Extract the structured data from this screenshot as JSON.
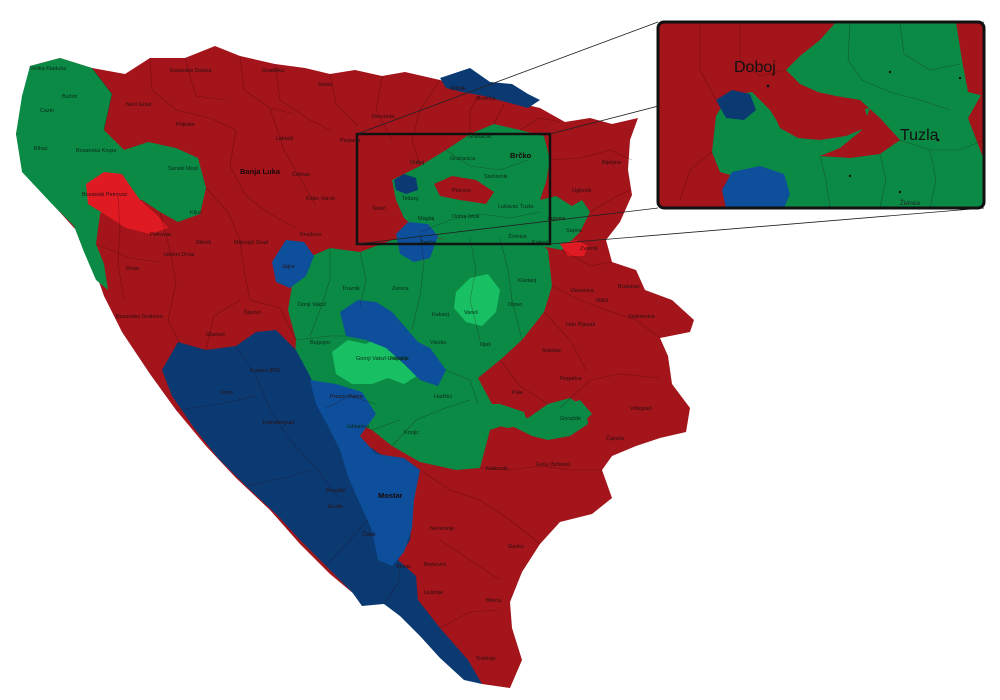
{
  "colors": {
    "red_dark": "#a3141b",
    "red_bright": "#e01a23",
    "green": "#0b8a46",
    "green_light": "#19c063",
    "blue_dark": "#0b3a73",
    "blue_mid": "#0d4f9a",
    "frame": "#111111"
  },
  "labels": {
    "banja_luka": "Banja Luka",
    "brcko": "Brčko",
    "mostar": "Mostar",
    "doboj": "Doboj",
    "tuzla": "Tuzla",
    "bosanski_petrovac": "Bosanski Petrovac",
    "gornji_vakuf": "Gornji Vakuf-Uskoplje",
    "vares": "Vareš",
    "fojnica": "Fojnica",
    "kupres": "Kupres (RS)",
    "livno": "Livno",
    "tomislavgrad": "Tomislavgrad",
    "prozor": "Prozor-Rama",
    "jablanica": "Jablanica",
    "konjic": "Konjic",
    "citluk": "Čitluk",
    "stolac": "Stolac",
    "ljubinje": "Ljubinje",
    "trebinje": "Trebinje",
    "bileca": "Bileća",
    "gacko": "Gacko",
    "nevesinje": "Nevesinje",
    "kalinovik": "Kalinovik",
    "foca": "Foča (Srbinje)",
    "gorazde": "Goražde",
    "visegrad": "Višegrad",
    "rogatica": "Rogatica",
    "sokolac": "Sokolac",
    "pale": "Pale",
    "han_pijesak": "Han Pijesak",
    "vlasenica": "Vlasenica",
    "bratunac": "Bratunac",
    "srebrenica": "Srebrenica",
    "milici": "Milići",
    "zvornik": "Zvornik",
    "bijeljina": "Bijeljina",
    "ugljevik": "Ugljevik",
    "lopare": "Lopare",
    "kladanj": "Kladanj",
    "olovo": "Olovo",
    "kakanj": "Kakanj",
    "zenica": "Zenica",
    "travnik": "Travnik",
    "zepce": "Žepče",
    "maglaj": "Maglaj",
    "tesanj": "Tešanj",
    "teslic": "Teslić",
    "gracanica": "Gračanica",
    "srebrenik": "Srebrenik",
    "lukavac": "Lukavac",
    "zivinice": "Živinice",
    "gradacac": "Gradačac",
    "odzak": "Odžak",
    "modrica": "Modriča",
    "derventa": "Derventa",
    "prnjavor": "Prnjavor",
    "laktasi": "Laktaši",
    "gradiska": "Gradiška",
    "srbac": "Srbac",
    "kozarska_dubica": "Kozarska Dubica",
    "novi_grad": "Novi Grad",
    "prijedor": "Prijedor",
    "velika_kladusa": "Velika Kladuša",
    "cazin": "Cazin",
    "bihac": "Bihać",
    "buzim": "Bužim",
    "bosanska_krupa": "Bosanska Krupa",
    "sanski_most": "Sanski Most",
    "kljuc": "Ključ",
    "ribnik": "Ribnik",
    "mrkonjic": "Mrkonjić Grad",
    "celinac": "Čelinac",
    "kotor_varos": "Kotor Varoš",
    "knezevo": "Kneževo",
    "jajce": "Jajce",
    "donji_vakuf": "Donji Vakuf",
    "bugojno": "Bugojno",
    "sipovo": "Šipovo",
    "glamoc": "Glamoč",
    "drvar": "Drvar",
    "bosansko_grahovo": "Bosansko Grahovo",
    "petrovac": "Petrovac",
    "istocni_drvar": "Istočni Drvar",
    "kiseljak": "Kiseljak",
    "visoko": "Visoko",
    "ilijas": "Ilijaš",
    "hadzici": "Hadžići",
    "breza": "Breza",
    "vitez": "Vitez",
    "novi_travnik": "Novi Travnik",
    "busovaca": "Busovača",
    "doboj_istok": "Doboj Istok",
    "kalesija": "Kalesija",
    "sapna": "Sapna",
    "cajnice": "Čajniče",
    "celic": "Čelić",
    "petrovo": "Petrovo",
    "posusje": "Posušje",
    "grude": "Grude",
    "siroki_brijeg": "Široki Brijeg",
    "ljubuski": "Ljubuški",
    "capljina": "Čapljina",
    "neum": "Neum",
    "ravno": "Ravno",
    "berkovici": "Berkovići",
    "istocni_mostar": "Istočni Mostar",
    "trnovo": "Trnovo (RS)"
  }
}
